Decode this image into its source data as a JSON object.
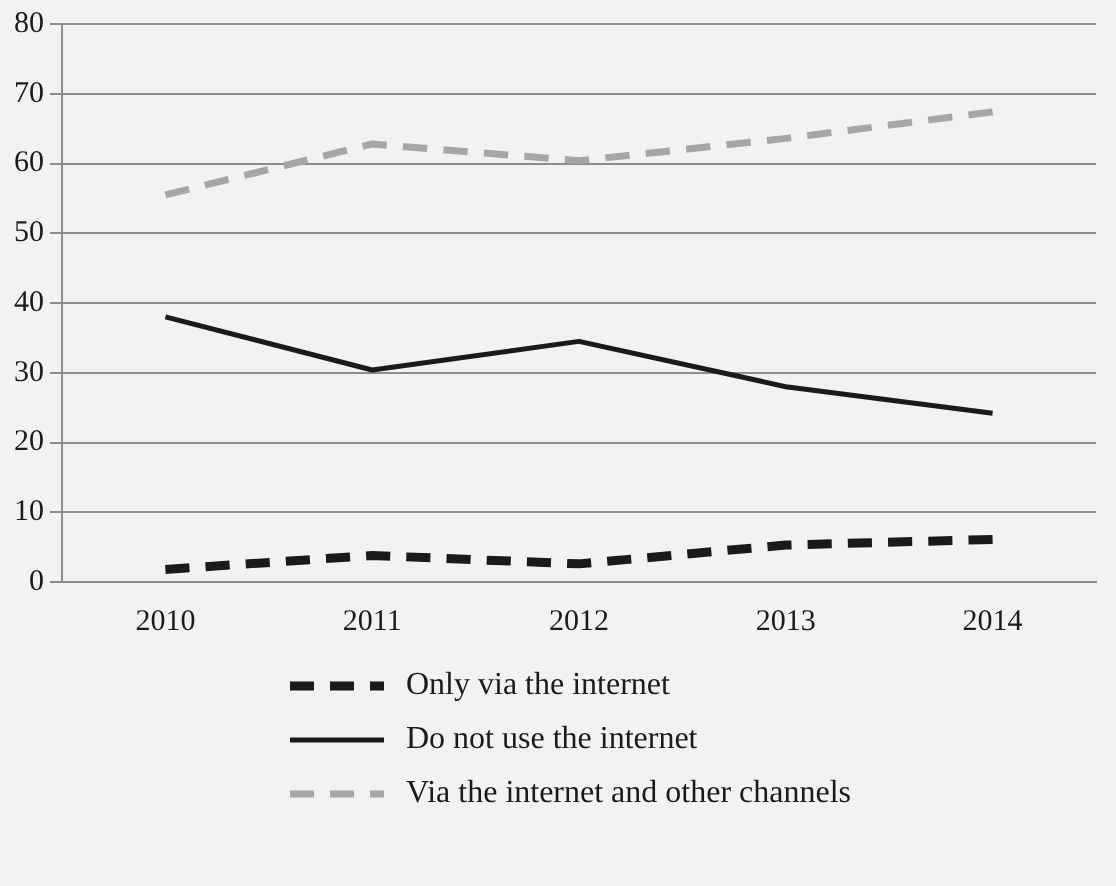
{
  "chart_data": {
    "type": "line",
    "categories": [
      "2010",
      "2011",
      "2012",
      "2013",
      "2014"
    ],
    "series": [
      {
        "name": "Only via the internet",
        "color": "#1a1a1a",
        "line_style": "dashed",
        "values": [
          1.8,
          3.8,
          2.6,
          5.3,
          6.1
        ]
      },
      {
        "name": "Do not use the internet",
        "color": "#1a1a1a",
        "line_style": "solid",
        "values": [
          38,
          30.4,
          34.5,
          28,
          24.2
        ]
      },
      {
        "name": "Via the internet and other channels",
        "color": "#a6a6a6",
        "line_style": "dashed",
        "values": [
          55.5,
          62.8,
          60.4,
          63.6,
          67.4
        ]
      }
    ],
    "ylim": [
      0,
      80
    ],
    "yticks": [
      0,
      10,
      20,
      30,
      40,
      50,
      60,
      70,
      80
    ],
    "grid": "y",
    "legend": "bottom",
    "marker": "none"
  }
}
